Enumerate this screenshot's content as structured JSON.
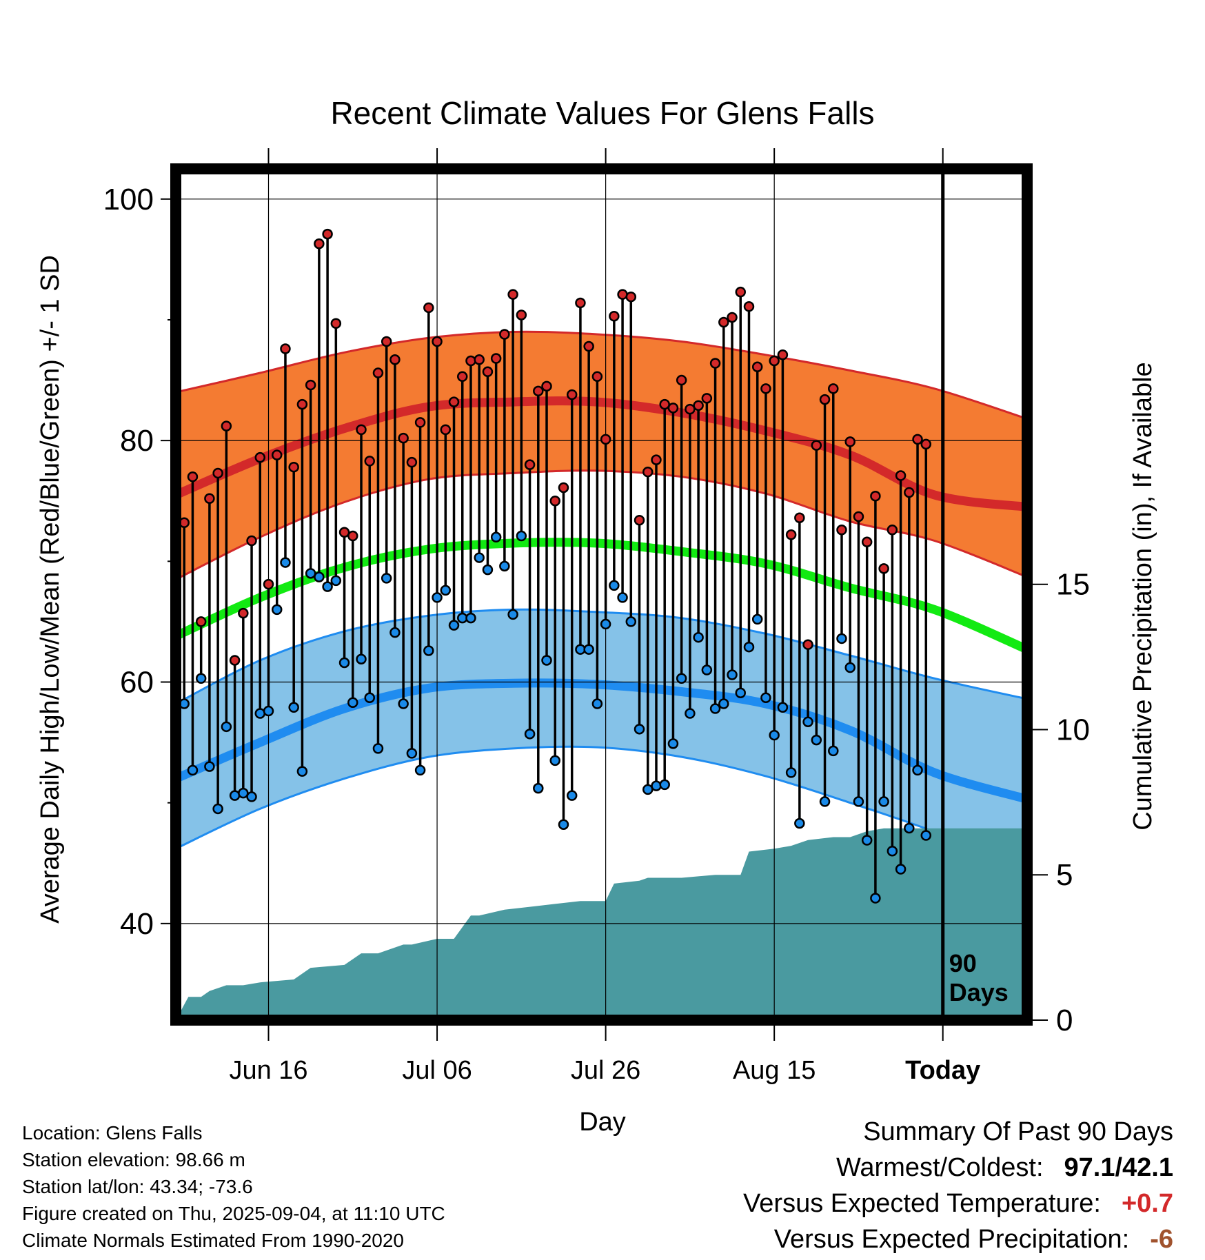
{
  "chart_data": {
    "type": "line",
    "title": "Recent Climate Values For Glens Falls",
    "xlabel": "Day",
    "ylabel": "Average Daily High/Low/Mean (Red/Blue/Green) +/- 1 SD",
    "y2label": "Cumulative Precipitation (in), If Available",
    "x_tick_labels": [
      "Jun 16",
      "Jul 06",
      "Jul 26",
      "Aug 15",
      "Today"
    ],
    "x_tick_days": [
      11,
      31,
      51,
      71,
      91
    ],
    "x_range_days": [
      0,
      101
    ],
    "days_label": "90\nDays",
    "y_ticks": [
      100,
      80,
      60,
      40
    ],
    "y_range": [
      32,
      102.5
    ],
    "y2_ticks": [
      15,
      10,
      5,
      0
    ],
    "y2_range": [
      0,
      29.3
    ],
    "grid": true,
    "normals_days": [
      0,
      10,
      20,
      30,
      40,
      50,
      60,
      70,
      80,
      90,
      101
    ],
    "normal_high": [
      75.5,
      78.5,
      81,
      82.8,
      83.2,
      83.2,
      82.3,
      80.8,
      78.8,
      75.5,
      74.5
    ],
    "normal_high_plus_sd": [
      84,
      85.6,
      87.3,
      88.5,
      89,
      88.8,
      88.2,
      87.1,
      85.8,
      84.3,
      81.8
    ],
    "normal_high_minus_sd": [
      68.5,
      72,
      74.9,
      76.8,
      77.3,
      77.5,
      77,
      75.6,
      73.3,
      71.7,
      68.7
    ],
    "normal_mean": [
      63.8,
      67,
      69.5,
      71,
      71.5,
      71.5,
      70.8,
      69.8,
      67.8,
      66,
      62.7
    ],
    "normal_low": [
      52,
      55,
      57.8,
      59.5,
      59.9,
      59.8,
      59.2,
      58.2,
      56,
      52.5,
      50.3
    ],
    "normal_low_plus_sd": [
      58.2,
      61.8,
      64.2,
      65.5,
      66,
      65.8,
      65.3,
      64,
      62.2,
      60.3,
      58.6
    ],
    "normal_low_minus_sd": [
      46.2,
      49.5,
      52,
      53.8,
      54.5,
      54.6,
      53.8,
      52.2,
      50,
      47.6,
      44.4
    ],
    "observed_days": [
      0,
      1,
      2,
      3,
      4,
      5,
      6,
      7,
      8,
      9,
      10,
      11,
      12,
      13,
      14,
      15,
      16,
      17,
      18,
      19,
      20,
      21,
      22,
      23,
      24,
      25,
      26,
      27,
      28,
      29,
      30,
      31,
      32,
      33,
      34,
      35,
      36,
      37,
      38,
      39,
      40,
      41,
      42,
      43,
      44,
      45,
      46,
      47,
      48,
      49,
      50,
      51,
      52,
      53,
      54,
      55,
      56,
      57,
      58,
      59,
      60,
      61,
      62,
      63,
      64,
      65,
      66,
      67,
      68,
      69,
      70,
      71,
      72,
      73,
      74,
      75,
      76,
      77,
      78,
      79,
      80,
      81,
      82,
      83,
      84,
      85,
      86,
      87,
      88,
      89
    ],
    "observed_high": [
      75.8,
      73.2,
      77.0,
      65.0,
      75.2,
      77.3,
      81.2,
      61.8,
      65.7,
      71.7,
      78.6,
      68.1,
      78.8,
      87.6,
      77.8,
      83.0,
      84.6,
      96.3,
      97.1,
      89.7,
      72.4,
      72.1,
      80.9,
      78.3,
      85.6,
      88.2,
      86.7,
      80.2,
      78.2,
      81.5,
      91.0,
      88.2,
      80.9,
      83.2,
      85.3,
      86.6,
      86.7,
      85.7,
      86.8,
      88.8,
      92.1,
      90.4,
      78.0,
      84.1,
      84.5,
      75.0,
      76.1,
      83.8,
      91.4,
      87.8,
      85.3,
      80.1,
      90.3,
      92.1,
      91.9,
      73.4,
      77.4,
      78.4,
      83.0,
      82.7,
      85.0,
      82.6,
      82.9,
      83.5,
      86.4,
      89.8,
      90.2,
      92.3,
      91.1,
      86.1,
      84.3,
      86.6,
      87.1,
      72.2,
      73.6,
      63.1,
      79.6,
      83.4,
      84.3,
      72.6,
      79.9,
      73.7,
      71.6,
      75.4,
      69.4,
      72.6,
      77.1,
      75.7,
      80.1,
      79.7
    ],
    "observed_low": [
      59.7,
      58.2,
      52.7,
      60.3,
      53.0,
      49.5,
      56.3,
      50.6,
      50.8,
      50.5,
      57.4,
      57.6,
      66.0,
      69.9,
      57.9,
      52.6,
      69.0,
      68.7,
      67.9,
      68.4,
      61.6,
      58.3,
      61.9,
      58.7,
      54.5,
      68.6,
      64.1,
      58.2,
      54.1,
      52.7,
      62.6,
      67.0,
      67.6,
      64.7,
      65.3,
      65.3,
      70.3,
      69.3,
      72.0,
      69.6,
      65.6,
      72.1,
      55.7,
      51.2,
      61.8,
      53.5,
      48.2,
      50.6,
      62.7,
      62.7,
      58.2,
      64.8,
      68.0,
      67.0,
      65.0,
      56.1,
      51.1,
      51.4,
      51.5,
      54.9,
      60.3,
      57.4,
      63.7,
      61.0,
      57.8,
      58.2,
      60.6,
      59.1,
      62.9,
      65.2,
      58.7,
      55.6,
      57.9,
      52.5,
      48.3,
      56.7,
      55.2,
      50.1,
      54.3,
      63.6,
      61.2,
      50.1,
      46.9,
      42.1,
      50.1,
      46.0,
      44.5,
      47.9,
      52.7,
      47.3
    ],
    "precip_days": [
      0,
      1.5,
      3,
      4,
      6,
      8,
      10,
      14,
      16,
      20,
      22,
      24,
      27,
      28,
      31,
      33,
      35,
      36,
      39,
      42,
      45,
      48,
      51,
      52,
      55,
      56,
      60,
      64,
      67,
      68,
      71,
      73,
      75,
      78,
      80,
      82,
      84,
      86,
      88,
      91,
      101
    ],
    "precip_values": [
      0,
      0.8,
      0.8,
      1.0,
      1.2,
      1.2,
      1.3,
      1.4,
      1.8,
      1.9,
      2.3,
      2.3,
      2.6,
      2.6,
      2.8,
      2.8,
      3.6,
      3.6,
      3.8,
      3.9,
      4.0,
      4.1,
      4.1,
      4.7,
      4.8,
      4.9,
      4.9,
      5.0,
      5.0,
      5.8,
      5.9,
      6.0,
      6.2,
      6.3,
      6.3,
      6.5,
      6.6,
      6.6,
      6.6,
      6.6,
      6.6
    ],
    "colors": {
      "high_band": "#f47b32",
      "high_line": "#d3292a",
      "low_band": "#85c2e8",
      "low_line": "#1f8cf0",
      "mean_line": "#12ea12",
      "precip": "#4a9aa0",
      "high_marker": "#d3292a",
      "low_marker": "#1a8ae8",
      "warm_value": "#d3292a",
      "precip_value": "#a0522d"
    }
  },
  "footer": {
    "location": "Location: Glens Falls",
    "elevation": "Station elevation: 98.66 m",
    "latlon": "Station lat/lon: 43.34; -73.6",
    "created": "Figure created on Thu, 2025-09-04, at 11:10 UTC",
    "normals": "Climate Normals Estimated From 1990-2020"
  },
  "summary": {
    "heading": "Summary Of Past 90 Days",
    "warm_cold_label": "Warmest/Coldest:",
    "warm_cold_value": "97.1/42.1",
    "temp_label": "Versus Expected Temperature:",
    "temp_value": "+0.7",
    "precip_label": "Versus Expected Precipitation:",
    "precip_value": "-6"
  }
}
